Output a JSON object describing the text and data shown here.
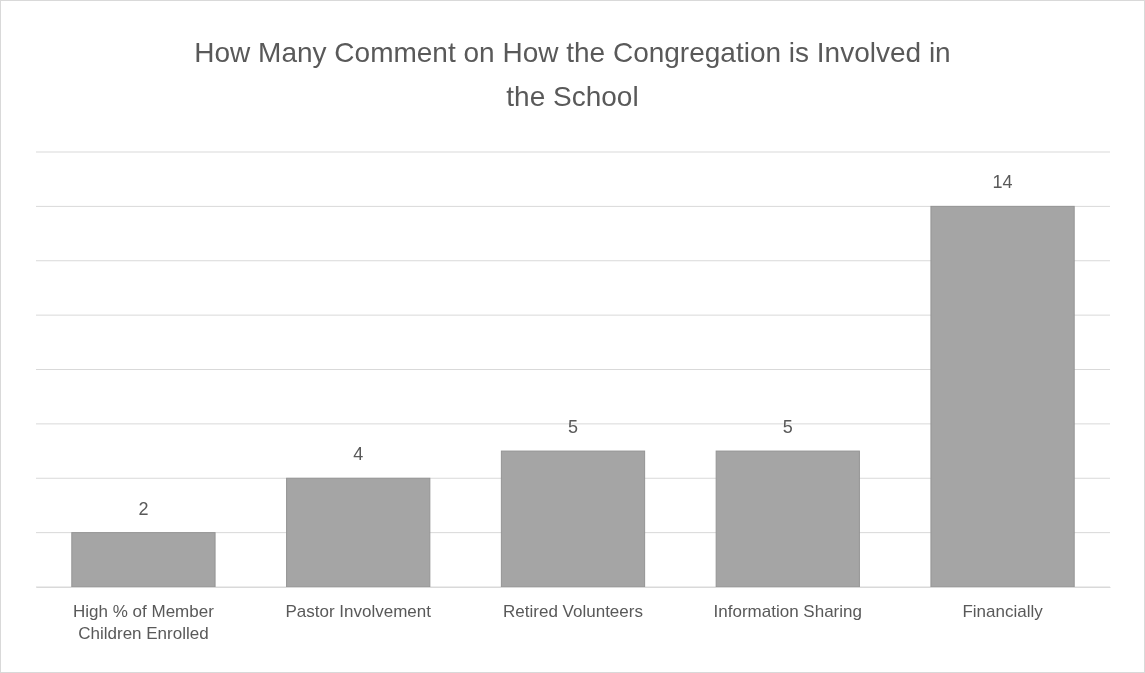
{
  "chart_data": {
    "type": "bar",
    "title": "How Many Comment on How the Congregation is Involved in the School",
    "categories": [
      "High % of Member Children Enrolled",
      "Pastor Involvement",
      "Retired Volunteers",
      "Information Sharing",
      "Financially"
    ],
    "values": [
      2,
      4,
      5,
      5,
      14
    ],
    "color": "#a5a5a5",
    "ylim": [
      0,
      16
    ],
    "yticks": [
      {
        "value": 0,
        "label": null
      },
      {
        "value": 2,
        "label": null
      },
      {
        "value": 4,
        "label": null
      },
      {
        "value": 6,
        "label": null
      },
      {
        "value": 8,
        "label": null
      },
      {
        "value": 10,
        "label": null
      },
      {
        "value": 12,
        "label": null
      },
      {
        "value": 14,
        "label": null
      },
      {
        "value": 16,
        "label": null
      }
    ],
    "grid": "y",
    "tick_labels": "x",
    "data_labels": true
  }
}
